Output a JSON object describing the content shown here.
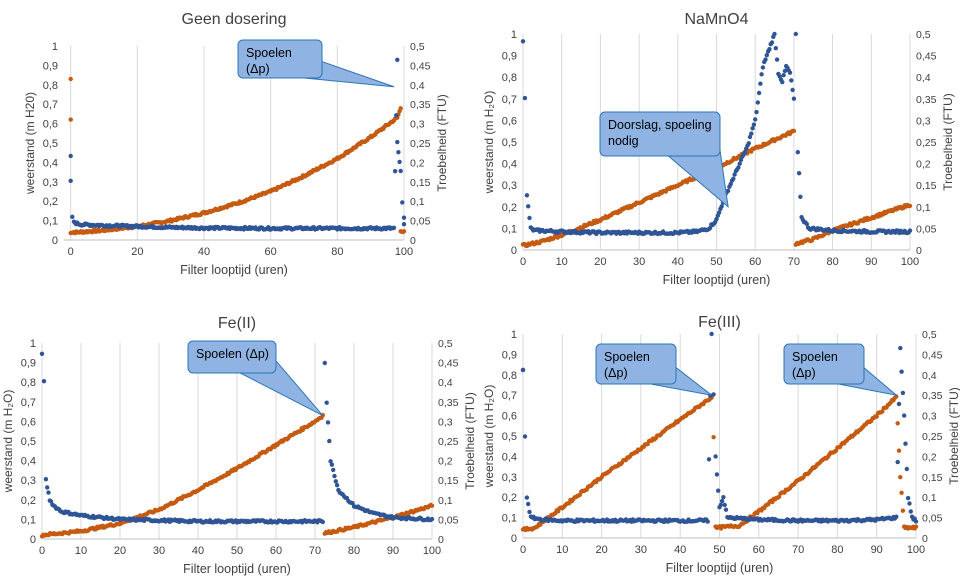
{
  "colors": {
    "resistance": "#c55a11",
    "turbidity": "#2f5597",
    "callout_fill": "#8fb4e3",
    "callout_stroke": "#2e75b6",
    "grid": "#d9d9d9"
  },
  "chart_data": [
    {
      "type": "scatter",
      "title": "Geen dosering",
      "xlabel": "Filter looptijd (uren)",
      "ylabel": "weerstand  (m H20)",
      "y2label": "Troebelheid (FTU)",
      "xlim": [
        -2,
        100
      ],
      "xticks": [
        "0",
        "20",
        "40",
        "60",
        "80",
        "100"
      ],
      "xtick_values": [
        0,
        20,
        40,
        60,
        80,
        100
      ],
      "ylim": [
        0,
        1
      ],
      "yticks": [
        "0",
        "0,1",
        "0,2",
        "0,3",
        "0,4",
        "0,5",
        "0,6",
        "0,7",
        "0,8",
        "0,9",
        "1"
      ],
      "y2lim": [
        0,
        0.5
      ],
      "y2ticks": [
        "0",
        "0,05",
        "0,1",
        "0,15",
        "0,2",
        "0,25",
        "0,3",
        "0,35",
        "0,4",
        "0,45",
        "0,5"
      ],
      "grid": "vertical",
      "series": [
        {
          "values": [
            [
              0,
              0.83
            ],
            [
              0,
              0.62
            ],
            [
              0,
              0.04
            ],
            [
              2,
              0.04
            ],
            [
              10,
              0.05
            ],
            [
              20,
              0.07
            ],
            [
              30,
              0.1
            ],
            [
              40,
              0.14
            ],
            [
              50,
              0.19
            ],
            [
              60,
              0.25
            ],
            [
              70,
              0.33
            ],
            [
              80,
              0.42
            ],
            [
              90,
              0.53
            ],
            [
              98,
              0.63
            ],
            [
              99,
              0.68
            ],
            [
              99,
              0.05
            ],
            [
              100,
              0.04
            ]
          ]
        },
        {
          "values": [
            [
              0,
              0.43
            ],
            [
              0,
              0.3
            ],
            [
              0.5,
              0.12
            ],
            [
              1,
              0.09
            ],
            [
              3,
              0.08
            ],
            [
              10,
              0.075
            ],
            [
              20,
              0.07
            ],
            [
              30,
              0.065
            ],
            [
              40,
              0.062
            ],
            [
              60,
              0.06
            ],
            [
              80,
              0.06
            ],
            [
              97,
              0.06
            ],
            [
              98,
              0.93
            ],
            [
              98,
              0.5
            ],
            [
              99,
              0.35
            ],
            [
              99.5,
              0.2
            ],
            [
              100,
              0.12
            ],
            [
              100,
              0.08
            ]
          ]
        }
      ],
      "annotations": [
        {
          "text": [
            "Spoelen",
            "(Δp)"
          ],
          "target": [
            97,
            0.79
          ]
        }
      ]
    },
    {
      "type": "scatter",
      "title": "NaMnO4",
      "xlabel": "Filter looptijd (uren)",
      "ylabel": "weerstand  (m H₂O)",
      "y2label": "Troebelheid  (FTU)",
      "xlim": [
        0,
        100
      ],
      "xticks": [
        "0",
        "10",
        "20",
        "30",
        "40",
        "50",
        "60",
        "70",
        "80",
        "90",
        "100"
      ],
      "xtick_values": [
        0,
        10,
        20,
        30,
        40,
        50,
        60,
        70,
        80,
        90,
        100
      ],
      "ylim": [
        0,
        1
      ],
      "yticks": [
        "0",
        "0,1",
        "0,2",
        "0,3",
        "0,4",
        "0,5",
        "0,6",
        "0,7",
        "0,8",
        "0,9",
        "1"
      ],
      "y2lim": [
        0,
        0.5
      ],
      "y2ticks": [
        "0",
        "0,05",
        "0,1",
        "0,15",
        "0,2",
        "0,25",
        "0,3",
        "0,35",
        "0,4",
        "0,45",
        "0,5"
      ],
      "grid": "vertical",
      "series": [
        {
          "values": [
            [
              0,
              0.02
            ],
            [
              5,
              0.04
            ],
            [
              10,
              0.07
            ],
            [
              20,
              0.14
            ],
            [
              30,
              0.22
            ],
            [
              40,
              0.3
            ],
            [
              50,
              0.38
            ],
            [
              60,
              0.47
            ],
            [
              65,
              0.51
            ],
            [
              70,
              0.55
            ],
            [
              70.5,
              0.03
            ],
            [
              75,
              0.05
            ],
            [
              80,
              0.09
            ],
            [
              90,
              0.15
            ],
            [
              100,
              0.21
            ]
          ]
        },
        {
          "values": [
            [
              0,
              0.97
            ],
            [
              0.5,
              0.7
            ],
            [
              1,
              0.25
            ],
            [
              2,
              0.1
            ],
            [
              3,
              0.09
            ],
            [
              4,
              0.09
            ],
            [
              10,
              0.085
            ],
            [
              20,
              0.08
            ],
            [
              30,
              0.08
            ],
            [
              40,
              0.08
            ],
            [
              45,
              0.085
            ],
            [
              48,
              0.1
            ],
            [
              50,
              0.14
            ],
            [
              52,
              0.24
            ],
            [
              55,
              0.36
            ],
            [
              58,
              0.48
            ],
            [
              60,
              0.6
            ],
            [
              62,
              0.85
            ],
            [
              63,
              0.9
            ],
            [
              64,
              0.95
            ],
            [
              65,
              1.0
            ],
            [
              66,
              0.82
            ],
            [
              67,
              0.78
            ],
            [
              68,
              0.85
            ],
            [
              69,
              0.82
            ],
            [
              70,
              0.7
            ],
            [
              70.5,
              1.0
            ],
            [
              71,
              0.45
            ],
            [
              72,
              0.15
            ],
            [
              74,
              0.1
            ],
            [
              80,
              0.09
            ],
            [
              90,
              0.085
            ],
            [
              100,
              0.085
            ]
          ]
        }
      ],
      "annotations": [
        {
          "text": [
            "Doorslag, spoeling",
            "nodig"
          ],
          "target": [
            53,
            0.2
          ]
        }
      ]
    },
    {
      "type": "scatter",
      "title": "Fe(II)",
      "xlabel": "Filter looptijd (uren)",
      "ylabel": "weerstand  (m H₂O)",
      "y2label": "Troebelheid  (FTU)",
      "xlim": [
        0,
        100
      ],
      "xticks": [
        "0",
        "10",
        "20",
        "30",
        "40",
        "50",
        "60",
        "70",
        "80",
        "90",
        "100"
      ],
      "xtick_values": [
        0,
        10,
        20,
        30,
        40,
        50,
        60,
        70,
        80,
        90,
        100
      ],
      "ylim": [
        0,
        1
      ],
      "yticks": [
        "0",
        "0,1",
        "0,2",
        "0,3",
        "0,4",
        "0,5",
        "0,6",
        "0,7",
        "0,8",
        "0,9",
        "1"
      ],
      "y2lim": [
        0,
        0.5
      ],
      "y2ticks": [
        "0",
        "0,05",
        "0,1",
        "0,15",
        "0,2",
        "0,25",
        "0,3",
        "0,35",
        "0,4",
        "0,45",
        "0,5"
      ],
      "grid": "vertical",
      "series": [
        {
          "values": [
            [
              0,
              0.02
            ],
            [
              10,
              0.04
            ],
            [
              20,
              0.08
            ],
            [
              30,
              0.15
            ],
            [
              40,
              0.25
            ],
            [
              50,
              0.36
            ],
            [
              60,
              0.48
            ],
            [
              70,
              0.6
            ],
            [
              72,
              0.63
            ],
            [
              72.5,
              0.03
            ],
            [
              80,
              0.06
            ],
            [
              90,
              0.11
            ],
            [
              100,
              0.17
            ]
          ]
        },
        {
          "values": [
            [
              0,
              0.95
            ],
            [
              0.5,
              0.8
            ],
            [
              1,
              0.3
            ],
            [
              2,
              0.2
            ],
            [
              3,
              0.17
            ],
            [
              5,
              0.14
            ],
            [
              10,
              0.12
            ],
            [
              20,
              0.1
            ],
            [
              30,
              0.095
            ],
            [
              40,
              0.09
            ],
            [
              50,
              0.09
            ],
            [
              60,
              0.09
            ],
            [
              72,
              0.09
            ],
            [
              72.5,
              0.9
            ],
            [
              73,
              0.7
            ],
            [
              74,
              0.4
            ],
            [
              76,
              0.25
            ],
            [
              80,
              0.17
            ],
            [
              85,
              0.13
            ],
            [
              90,
              0.11
            ],
            [
              100,
              0.1
            ]
          ]
        }
      ],
      "annotations": [
        {
          "text": [
            "Spoelen (Δp)"
          ],
          "target": [
            72,
            0.63
          ]
        }
      ]
    },
    {
      "type": "scatter",
      "title": "Fe(III)",
      "xlabel": "Filter looptijd (uren)",
      "ylabel": "weerstand  (m H₂O)",
      "y2label": "Troebelheid  (FTU)",
      "xlim": [
        0,
        100
      ],
      "xticks": [
        "0",
        "10",
        "20",
        "30",
        "40",
        "50",
        "60",
        "70",
        "80",
        "90",
        "100"
      ],
      "xtick_values": [
        0,
        10,
        20,
        30,
        40,
        50,
        60,
        70,
        80,
        90,
        100
      ],
      "ylim": [
        0,
        1
      ],
      "yticks": [
        "0",
        "0,1",
        "0,2",
        "0,3",
        "0,4",
        "0,5",
        "0,6",
        "0,7",
        "0,8",
        "0,9",
        "1"
      ],
      "y2lim": [
        0,
        0.5
      ],
      "y2ticks": [
        "0",
        "0,05",
        "0,1",
        "0,15",
        "0,2",
        "0,25",
        "0,3",
        "0,35",
        "0,4",
        "0,45",
        "0,5"
      ],
      "grid": "vertical",
      "series": [
        {
          "values": [
            [
              0,
              0.83
            ],
            [
              0,
              0.04
            ],
            [
              3,
              0.05
            ],
            [
              10,
              0.15
            ],
            [
              20,
              0.3
            ],
            [
              30,
              0.44
            ],
            [
              40,
              0.58
            ],
            [
              48,
              0.69
            ],
            [
              48.5,
              0.5
            ],
            [
              49,
              0.05
            ],
            [
              55,
              0.06
            ],
            [
              60,
              0.13
            ],
            [
              70,
              0.28
            ],
            [
              80,
              0.44
            ],
            [
              90,
              0.6
            ],
            [
              95,
              0.69
            ],
            [
              96,
              0.3
            ],
            [
              97,
              0.05
            ],
            [
              100,
              0.05
            ]
          ]
        },
        {
          "values": [
            [
              0,
              0.82
            ],
            [
              0.5,
              0.5
            ],
            [
              1,
              0.2
            ],
            [
              2,
              0.1
            ],
            [
              5,
              0.09
            ],
            [
              10,
              0.085
            ],
            [
              20,
              0.085
            ],
            [
              30,
              0.085
            ],
            [
              40,
              0.085
            ],
            [
              47,
              0.085
            ],
            [
              48,
              1.0
            ],
            [
              48.5,
              0.7
            ],
            [
              49,
              0.4
            ],
            [
              50,
              0.15
            ],
            [
              51,
              0.2
            ],
            [
              52,
              0.1
            ],
            [
              60,
              0.09
            ],
            [
              70,
              0.085
            ],
            [
              80,
              0.085
            ],
            [
              90,
              0.09
            ],
            [
              95,
              0.1
            ],
            [
              96,
              0.93
            ],
            [
              97,
              0.6
            ],
            [
              98,
              0.2
            ],
            [
              99,
              0.1
            ],
            [
              100,
              0.085
            ]
          ]
        }
      ],
      "annotations": [
        {
          "text": [
            "Spoelen",
            "(Δp)"
          ],
          "target": [
            48,
            0.7
          ]
        },
        {
          "text": [
            "Spoelen",
            "(Δp)"
          ],
          "target": [
            95,
            0.7
          ]
        }
      ]
    }
  ]
}
